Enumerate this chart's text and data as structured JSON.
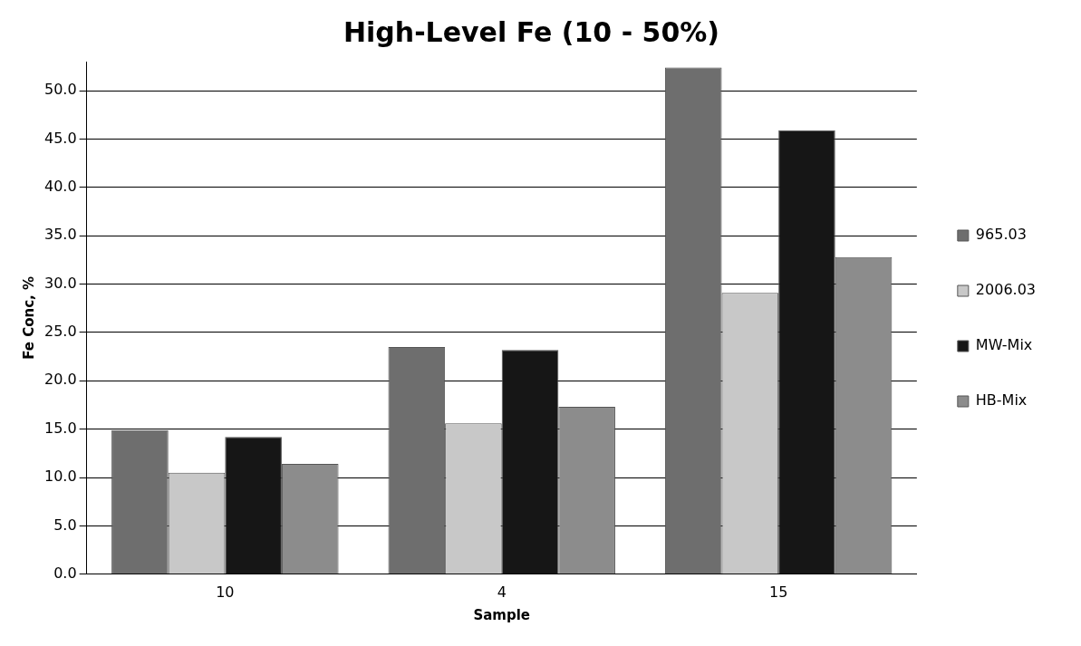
{
  "chart_data": {
    "type": "bar",
    "title": "High-Level Fe (10 - 50%)",
    "xlabel": "Sample",
    "ylabel": "Fe Conc, %",
    "categories": [
      "10",
      "4",
      "15"
    ],
    "series": [
      {
        "name": "965.03",
        "color": "#6e6e6e",
        "values": [
          14.9,
          23.5,
          52.4
        ]
      },
      {
        "name": "2006.03",
        "color": "#c8c8c8",
        "values": [
          10.5,
          15.6,
          29.1
        ]
      },
      {
        "name": "MW-Mix",
        "color": "#161616",
        "values": [
          14.2,
          23.2,
          45.9
        ]
      },
      {
        "name": "HB-Mix",
        "color": "#8c8c8c",
        "values": [
          11.4,
          17.3,
          32.8
        ]
      }
    ],
    "ylim": [
      0,
      53
    ],
    "yticks": [
      {
        "value": 0,
        "label": "0.0"
      },
      {
        "value": 5,
        "label": "5.0"
      },
      {
        "value": 10,
        "label": "10.0"
      },
      {
        "value": 15,
        "label": "15.0"
      },
      {
        "value": 20,
        "label": "20.0"
      },
      {
        "value": 25,
        "label": "25.0"
      },
      {
        "value": 30,
        "label": "30.0"
      },
      {
        "value": 35,
        "label": "35.0"
      },
      {
        "value": 40,
        "label": "40.0"
      },
      {
        "value": 45,
        "label": "45.0"
      },
      {
        "value": 50,
        "label": "50.0"
      }
    ],
    "grid": "y",
    "legend": "right"
  }
}
